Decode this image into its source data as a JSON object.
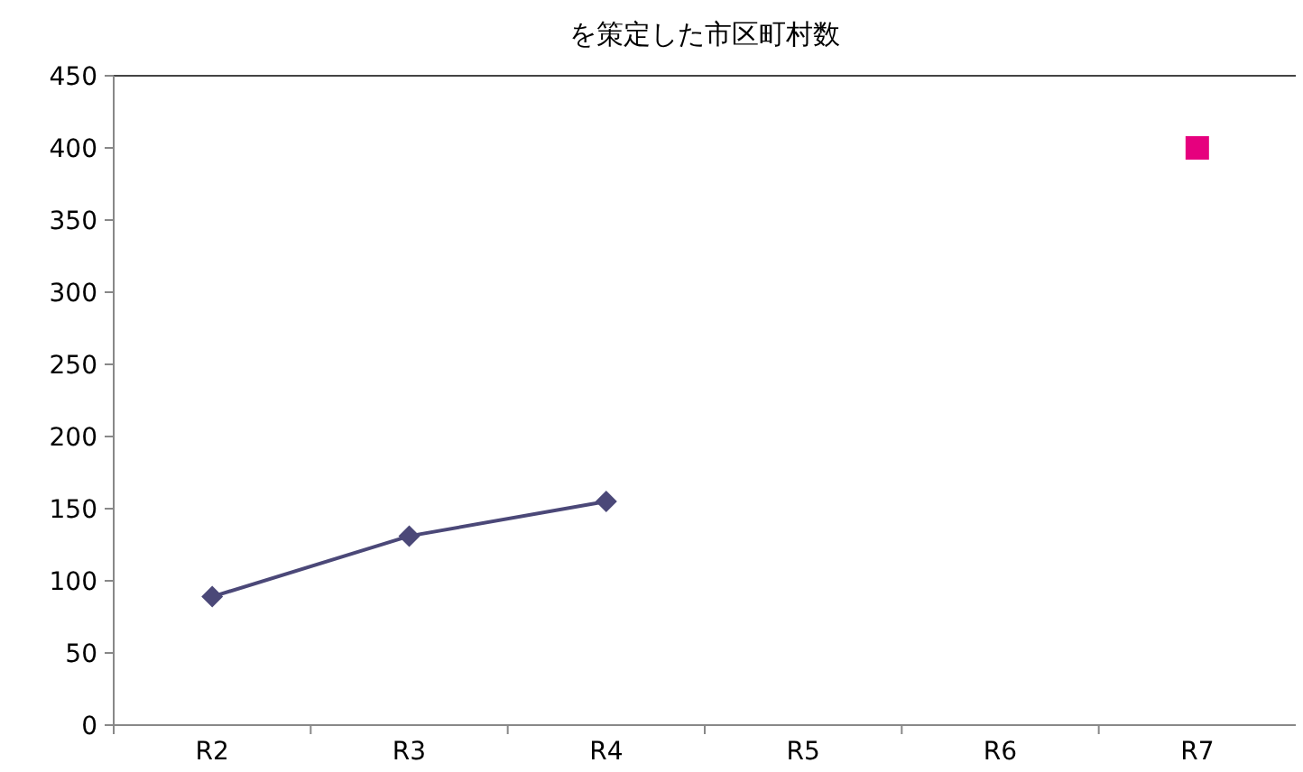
{
  "chart_data": {
    "type": "line",
    "title": "を策定した市区町村数",
    "categories": [
      "R2",
      "R3",
      "R4",
      "R5",
      "R6",
      "R7"
    ],
    "series": [
      {
        "color": "#4b4878",
        "marker": "diamond",
        "values": [
          89,
          131,
          155,
          null,
          null,
          null
        ]
      },
      {
        "type": "scatter",
        "color": "#e6007e",
        "marker": "square",
        "values": [
          null,
          null,
          null,
          null,
          null,
          400
        ]
      }
    ],
    "ylim": [
      0,
      450
    ],
    "yticks": [
      0,
      50,
      100,
      150,
      200,
      250,
      300,
      350,
      400,
      450
    ],
    "grid": false
  }
}
